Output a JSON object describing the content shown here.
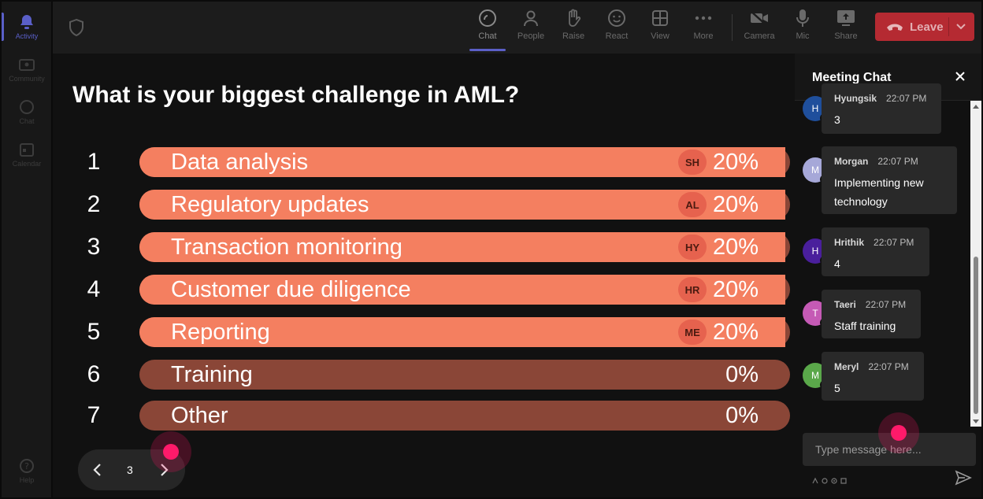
{
  "rail": {
    "items": [
      {
        "label": "Activity",
        "icon": "bell-icon"
      },
      {
        "label": "Community",
        "icon": "community-icon"
      },
      {
        "label": "Chat",
        "icon": "chat-icon"
      },
      {
        "label": "Calendar",
        "icon": "calendar-icon"
      }
    ],
    "help_label": "Help"
  },
  "toolbar": {
    "chat": "Chat",
    "people": "People",
    "raise": "Raise",
    "react": "React",
    "view": "View",
    "more": "More",
    "camera": "Camera",
    "mic": "Mic",
    "share": "Share",
    "leave": "Leave"
  },
  "poll": {
    "question": "What is your biggest challenge in AML?",
    "options": [
      {
        "num": "1",
        "label": "Data analysis",
        "pct": "20%",
        "value": 20,
        "avatar": "SH"
      },
      {
        "num": "2",
        "label": "Regulatory updates",
        "pct": "20%",
        "value": 20,
        "avatar": "AL"
      },
      {
        "num": "3",
        "label": "Transaction monitoring",
        "pct": "20%",
        "value": 20,
        "avatar": "HY"
      },
      {
        "num": "4",
        "label": "Customer due diligence",
        "pct": "20%",
        "value": 20,
        "avatar": "HR"
      },
      {
        "num": "5",
        "label": "Reporting",
        "pct": "20%",
        "value": 20,
        "avatar": "ME"
      },
      {
        "num": "6",
        "label": "Training",
        "pct": "0%",
        "value": 0,
        "avatar": ""
      },
      {
        "num": "7",
        "label": "Other",
        "pct": "0%",
        "value": 0,
        "avatar": ""
      }
    ],
    "page": "3"
  },
  "chat": {
    "title": "Meeting Chat",
    "messages": [
      {
        "initial": "H",
        "author": "Hyungsik",
        "time": "22:07 PM",
        "text": "3",
        "color": "#1f4f9c"
      },
      {
        "initial": "M",
        "author": "Morgan",
        "time": "22:07 PM",
        "text": "Implementing new technology",
        "color": "#a6a8d8"
      },
      {
        "initial": "H",
        "author": "Hrithik",
        "time": "22:07 PM",
        "text": "4",
        "color": "#4a1f9c"
      },
      {
        "initial": "T",
        "author": "Taeri",
        "time": "22:07 PM",
        "text": "Staff training",
        "color": "#c55ab5"
      },
      {
        "initial": "M",
        "author": "Meryl",
        "time": "22:07 PM",
        "text": "5",
        "color": "#5aa84a"
      }
    ],
    "input_placeholder": "Type message here..."
  },
  "colors": {
    "bar_fill": "#f47f60",
    "bar_track": "#8a4637",
    "leave": "#b52a32",
    "accent": "#5b5fc7"
  }
}
